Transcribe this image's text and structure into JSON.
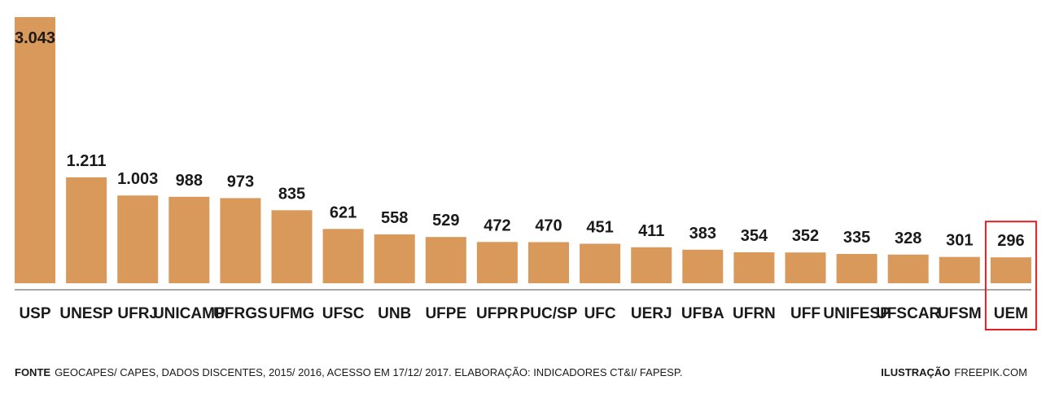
{
  "chart_data": {
    "type": "bar",
    "categories": [
      "USP",
      "UNESP",
      "UFRJ",
      "UNICAMP",
      "UFRGS",
      "UFMG",
      "UFSC",
      "UNB",
      "UFPE",
      "UFPR",
      "PUC/SP",
      "UFC",
      "UERJ",
      "UFBA",
      "UFRN",
      "UFF",
      "UNIFESP",
      "UFSCAR",
      "UFSM",
      "UEM"
    ],
    "values": [
      3043,
      1211,
      1003,
      988,
      973,
      835,
      621,
      558,
      529,
      472,
      470,
      451,
      411,
      383,
      354,
      352,
      335,
      328,
      301,
      296
    ],
    "value_labels": [
      "3.043",
      "1.211",
      "1.003",
      "988",
      "973",
      "835",
      "621",
      "558",
      "529",
      "472",
      "470",
      "451",
      "411",
      "383",
      "354",
      "352",
      "335",
      "328",
      "301",
      "296"
    ],
    "highlight": "UEM",
    "bar_color": "#d9995a",
    "highlight_color": "#e02020",
    "title": "",
    "xlabel": "",
    "ylabel": "",
    "ylim": [
      0,
      3043
    ],
    "grid": false
  },
  "footer": {
    "source_label": "FONTE",
    "source_text": "GEOCAPES/ CAPES, DADOS DISCENTES, 2015/ 2016, ACESSO EM 17/12/ 2017. ELABORAÇÃO: INDICADORES CT&I/ FAPESP.",
    "credit_label": "ILUSTRAÇÃO",
    "credit_text": "FREEPIK.COM"
  }
}
